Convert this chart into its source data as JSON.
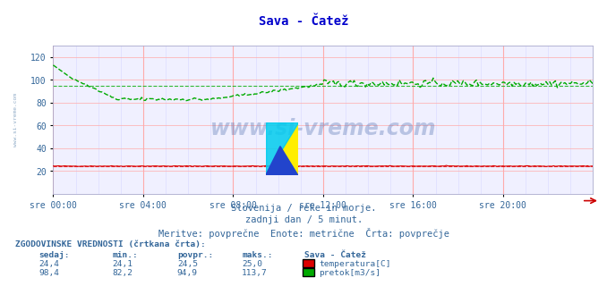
{
  "title": "Sava - Čatež",
  "title_color": "#0000cc",
  "bg_color": "#ffffff",
  "plot_bg_color": "#f0f0ff",
  "grid_color_major": "#ffaaaa",
  "grid_color_minor": "#ddddff",
  "xlabel_color": "#336699",
  "yticks": [
    20,
    40,
    60,
    80,
    100,
    120
  ],
  "xtick_labels": [
    "sre 00:00",
    "sre 04:00",
    "sre 08:00",
    "sre 12:00",
    "sre 16:00",
    "sre 20:00"
  ],
  "xtick_positions": [
    0,
    4,
    8,
    12,
    16,
    20
  ],
  "temp_color": "#dd0000",
  "flow_color": "#00aa00",
  "temp_avg": 24.5,
  "flow_avg": 94.9,
  "temp_current": "24,4",
  "temp_min": "24,1",
  "temp_max": "25,0",
  "flow_current": "98,4",
  "flow_min": "82,2",
  "flow_max": "113,7",
  "watermark": "www.si-vreme.com",
  "watermark_color": "#4466aa",
  "watermark_alpha": 0.32,
  "subtitle1": "Slovenija / reke in morje.",
  "subtitle2": "zadnji dan / 5 minut.",
  "subtitle3": "Meritve: povprečne  Enote: metrične  Črta: povprečje",
  "legend_title": "Sava - Čatež",
  "label_temp": "temperatura[C]",
  "label_flow": "pretok[m3/s]",
  "hist_label": "ZGODOVINSKE VREDNOSTI (črtkana črta):",
  "col_headers": [
    "sedaj:",
    "min.:",
    "povpr.:",
    "maks.:"
  ],
  "side_label": "www.si-vreme.com",
  "arrow_color": "#cc0000",
  "temp_avg_str": "24,5",
  "flow_avg_str": "94,9"
}
